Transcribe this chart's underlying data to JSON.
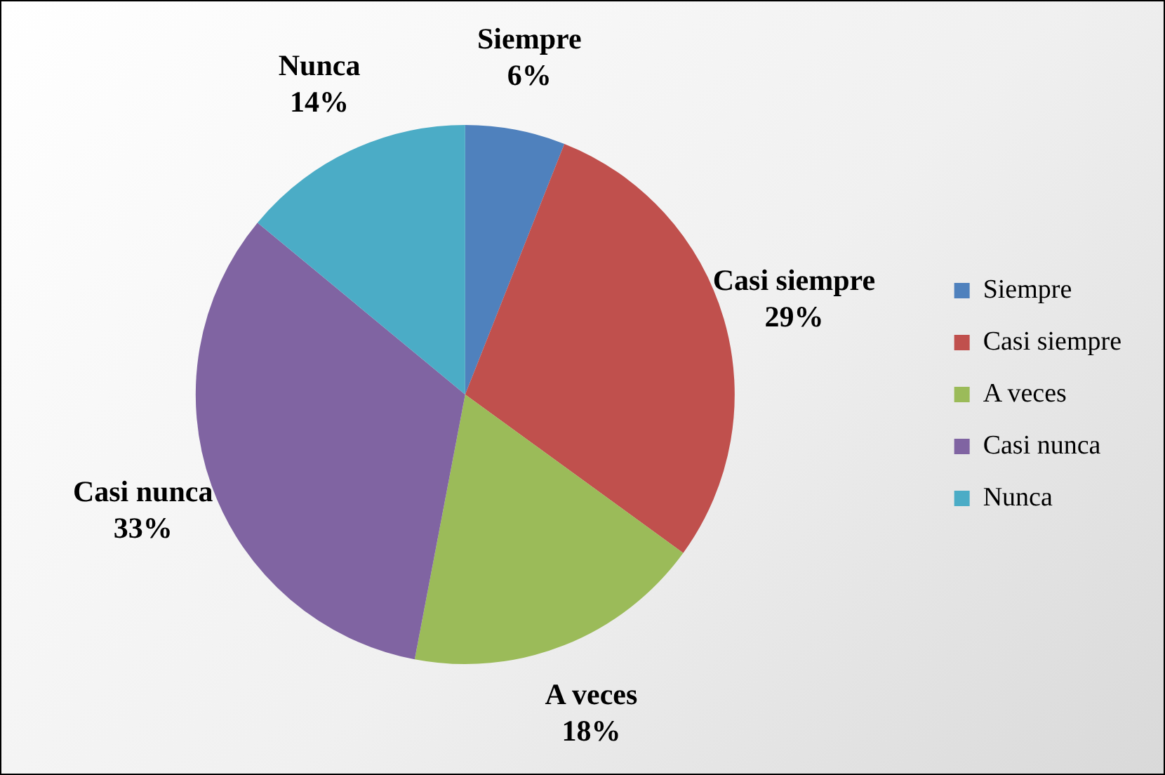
{
  "chart_data": {
    "type": "pie",
    "categories": [
      "Siempre",
      "Casi siempre",
      "A veces",
      "Casi nunca",
      "Nunca"
    ],
    "values": [
      6,
      29,
      18,
      33,
      14
    ],
    "value_labels": [
      "6%",
      "29%",
      "18%",
      "33%",
      "14%"
    ],
    "colors": [
      "#4f81bd",
      "#c0504d",
      "#9bbb59",
      "#8064a2",
      "#4bacc6"
    ],
    "legend": "right"
  }
}
